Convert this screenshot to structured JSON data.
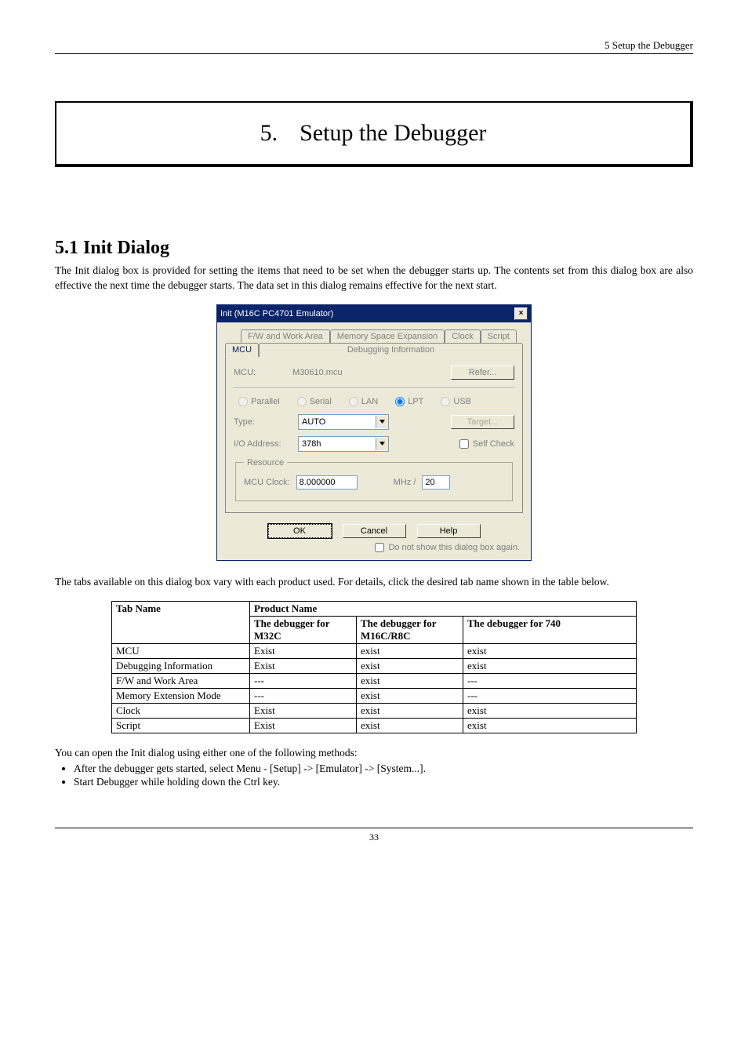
{
  "header": {
    "right": "5 Setup the Debugger"
  },
  "chapter": {
    "num": "5.",
    "title": "Setup the Debugger"
  },
  "section": {
    "heading": "5.1 Init Dialog"
  },
  "intro": "The Init dialog box is provided for setting the items that need to be set when the debugger starts up. The contents set from this dialog box are also effective the next time the debugger starts. The data set in this dialog remains effective for the next start.",
  "dialog": {
    "title": "Init (M16C PC4701 Emulator)",
    "tabs_row1": [
      "F/W and Work Area",
      "Memory Space Expansion",
      "Clock",
      "Script"
    ],
    "tabs_row2": [
      "MCU",
      "Debugging Information"
    ],
    "mcu_label": "MCU:",
    "mcu_value": "M30610.mcu",
    "refer_btn": "Refer...",
    "radios": [
      "Parallel",
      "Serial",
      "LAN",
      "LPT",
      "USB"
    ],
    "radio_selected": "LPT",
    "type_label": "Type:",
    "type_value": "AUTO",
    "target_btn": "Target...",
    "io_label": "I/O Address:",
    "io_value": "378h",
    "selfcheck": "Self Check",
    "resource_legend": "Resource",
    "mcu_clock_label": "MCU Clock:",
    "mcu_clock_value": "8.000000",
    "mhz_label": "MHz /",
    "mhz_div": "20",
    "ok": "OK",
    "cancel": "Cancel",
    "help": "Help",
    "dontshow": "Do not show this dialog box again."
  },
  "para2": "The tabs available on this dialog box vary with each product used. For details, click the desired tab name shown in the table below.",
  "table": {
    "h_tab": "Tab Name",
    "h_prod": "Product Name",
    "h_p1": "The debugger for M32C",
    "h_p2": "The debugger for M16C/R8C",
    "h_p3": "The debugger for 740",
    "rows": [
      [
        "MCU",
        "Exist",
        "exist",
        "exist"
      ],
      [
        "Debugging Information",
        "Exist",
        "exist",
        "exist"
      ],
      [
        "F/W and Work Area",
        "---",
        "exist",
        "---"
      ],
      [
        "Memory Extension Mode",
        "---",
        "exist",
        "---"
      ],
      [
        "Clock",
        "Exist",
        "exist",
        "exist"
      ],
      [
        "Script",
        "Exist",
        "exist",
        "exist"
      ]
    ]
  },
  "methods_intro": "You can open the Init dialog using either one of the following methods:",
  "methods": [
    "After the debugger gets started, select Menu - [Setup] -> [Emulator] -> [System...].",
    "Start Debugger while holding down the Ctrl key."
  ],
  "page_number": "33"
}
